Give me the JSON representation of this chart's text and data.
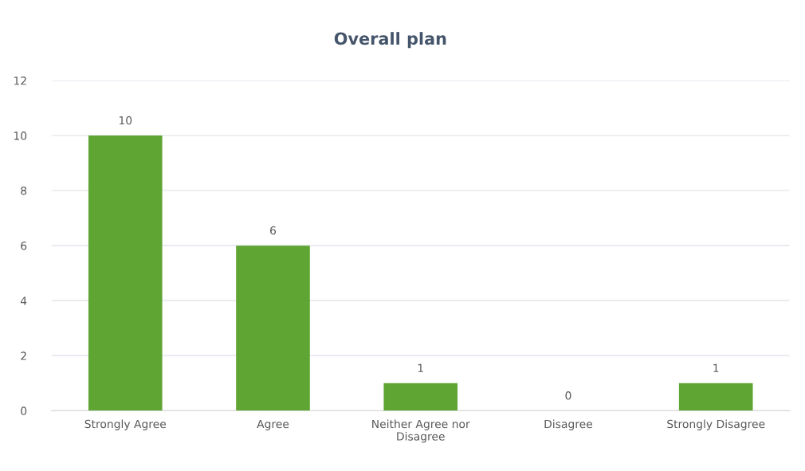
{
  "chart_data": {
    "type": "bar",
    "title": "Overall plan",
    "categories": [
      "Strongly Agree",
      "Agree",
      "Neither Agree nor\nDisagree",
      "Disagree",
      "Strongly Disagree"
    ],
    "values": [
      10,
      6,
      1,
      0,
      1
    ],
    "color": "#5fa533",
    "ylim": [
      0,
      12
    ],
    "yticks": [
      0,
      2,
      4,
      6,
      8,
      10,
      12
    ],
    "grid": "y",
    "data_labels": true
  }
}
